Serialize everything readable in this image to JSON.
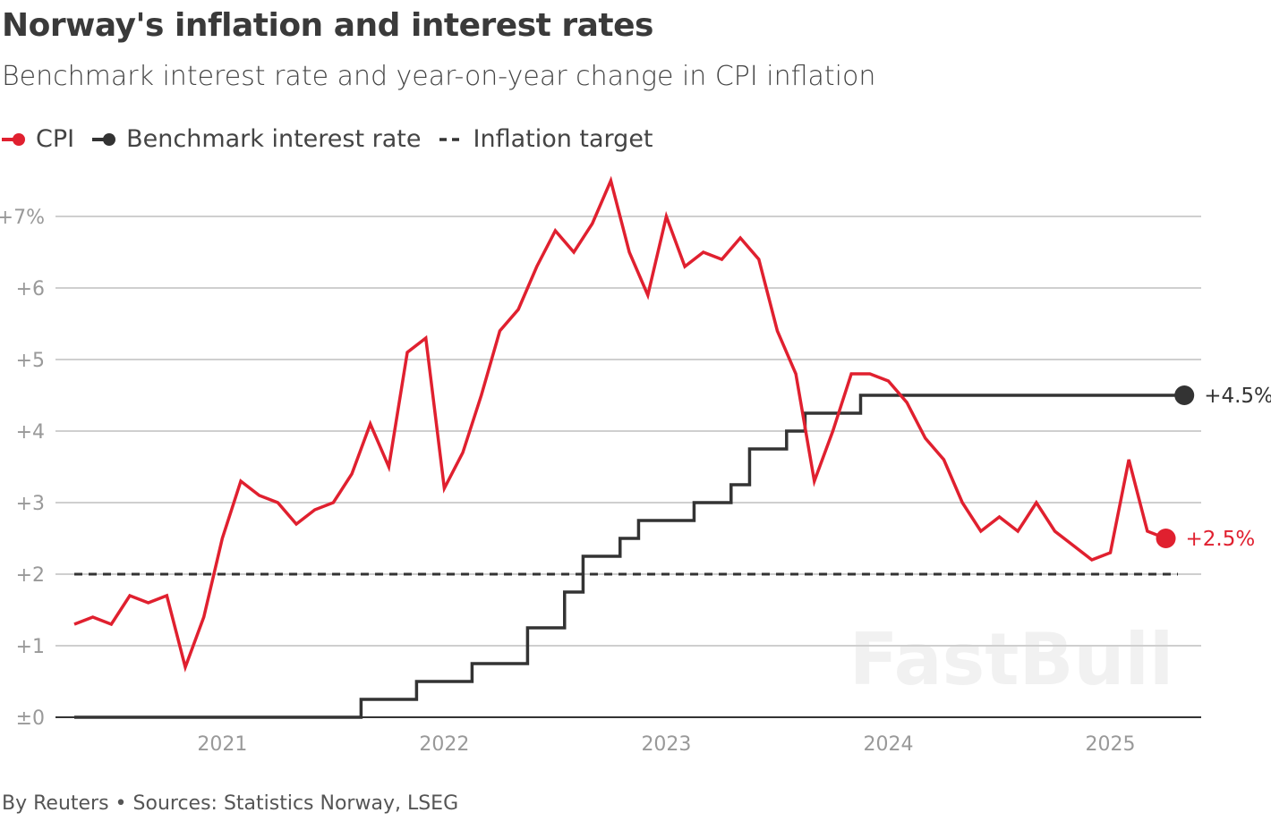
{
  "chart_data": {
    "type": "line",
    "title": "Norway's inflation and interest rates",
    "subtitle": "Benchmark interest rate and year-on-year change in CPI inflation",
    "ylim": [
      0,
      7.5
    ],
    "y_ticks": [
      "±0",
      "+1",
      "+2",
      "+3",
      "+4",
      "+5",
      "+6",
      "+7%"
    ],
    "y_tick_values": [
      0,
      1,
      2,
      3,
      4,
      5,
      6,
      7
    ],
    "x_ticks": [
      "2021",
      "2022",
      "2023",
      "2024",
      "2025"
    ],
    "x_tick_months": [
      "2021-01",
      "2022-01",
      "2023-01",
      "2024-01",
      "2025-01"
    ],
    "grid": true,
    "legend_position": "top-left",
    "series": [
      {
        "name": "CPI",
        "color": "#e0202f",
        "start_month": "2020-05",
        "frequency": "monthly",
        "values": [
          1.3,
          1.4,
          1.3,
          1.7,
          1.6,
          1.7,
          0.7,
          1.4,
          2.5,
          3.3,
          3.1,
          3.0,
          2.7,
          2.9,
          3.0,
          3.4,
          4.1,
          3.5,
          5.1,
          5.3,
          3.2,
          3.7,
          4.5,
          5.4,
          5.7,
          6.3,
          6.8,
          6.5,
          6.9,
          7.5,
          6.5,
          5.9,
          7.0,
          6.3,
          6.5,
          6.4,
          6.7,
          6.4,
          5.4,
          4.8,
          3.3,
          4.0,
          4.8,
          4.8,
          4.7,
          4.4,
          3.9,
          3.6,
          3.0,
          2.6,
          2.8,
          2.6,
          3.0,
          2.6,
          2.4,
          2.2,
          2.3,
          3.6,
          2.6,
          2.5
        ],
        "end_label": "+2.5%"
      },
      {
        "name": "Benchmark interest rate",
        "color": "#333333",
        "type": "step",
        "start_month": "2020-05",
        "end_month": "2025-05",
        "initial_value": 0,
        "changes": [
          {
            "month": "2021-09",
            "value": 0.25
          },
          {
            "month": "2021-12",
            "value": 0.5
          },
          {
            "month": "2022-03",
            "value": 0.75
          },
          {
            "month": "2022-06",
            "value": 1.25
          },
          {
            "month": "2022-08",
            "value": 1.75
          },
          {
            "month": "2022-09",
            "value": 2.25
          },
          {
            "month": "2022-11",
            "value": 2.5
          },
          {
            "month": "2022-12",
            "value": 2.75
          },
          {
            "month": "2023-03",
            "value": 3.0
          },
          {
            "month": "2023-05",
            "value": 3.25
          },
          {
            "month": "2023-06",
            "value": 3.75
          },
          {
            "month": "2023-08",
            "value": 4.0
          },
          {
            "month": "2023-09",
            "value": 4.25
          },
          {
            "month": "2023-12",
            "value": 4.5
          }
        ],
        "end_label": "+4.5%"
      },
      {
        "name": "Inflation target",
        "color": "#333333",
        "style": "dashed",
        "value": 2
      }
    ]
  },
  "footer": "By Reuters • Sources: Statistics Norway, LSEG",
  "watermark": "FastBull"
}
